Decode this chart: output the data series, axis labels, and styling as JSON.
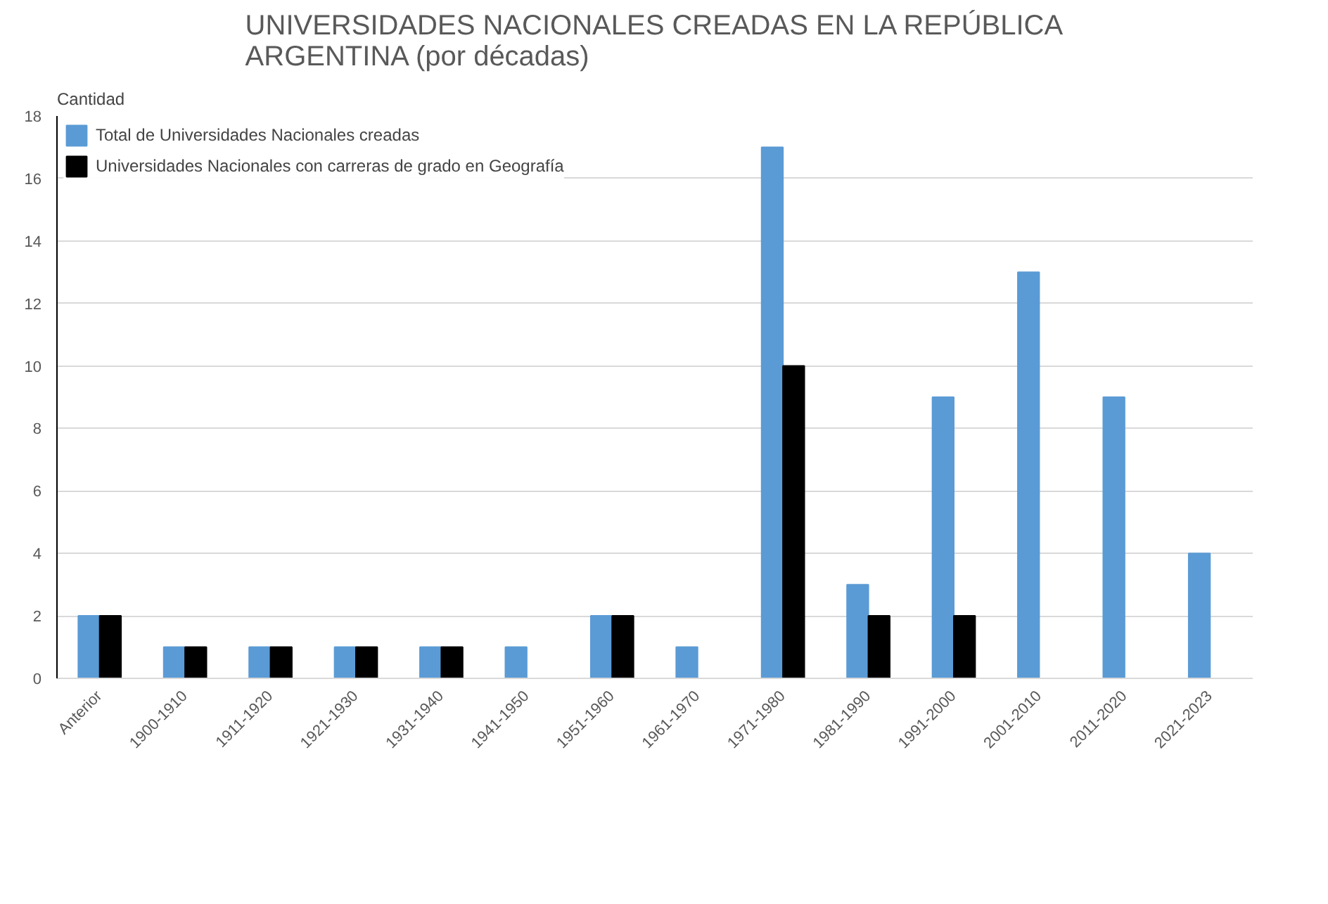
{
  "chart_data": {
    "type": "bar",
    "title": "UNIVERSIDADES NACIONALES CREADAS EN LA REPÚBLICA ARGENTINA (por décadas)",
    "ylabel": "Cantidad",
    "categories": [
      "Anterior",
      "1900-1910",
      "1911-1920",
      "1921-1930",
      "1931-1940",
      "1941-1950",
      "1951-1960",
      "1961-1970",
      "1971-1980",
      "1981-1990",
      "1991-2000",
      "2001-2010",
      "2011-2020",
      "2021-2023"
    ],
    "series": [
      {
        "name": "Total de Universidades Nacionales creadas",
        "color": "#5b9bd5",
        "values": [
          2,
          1,
          1,
          1,
          1,
          1,
          2,
          1,
          17,
          3,
          9,
          13,
          9,
          4
        ]
      },
      {
        "name": "Universidades Nacionales con carreras de grado en Geografía",
        "color": "#000000",
        "values": [
          2,
          1,
          1,
          1,
          1,
          null,
          2,
          null,
          10,
          2,
          2,
          null,
          null,
          null
        ]
      }
    ],
    "ylim": [
      0,
      18
    ],
    "yticks": [
      0,
      2,
      4,
      6,
      8,
      10,
      12,
      14,
      16,
      18
    ],
    "grid": "y",
    "legend": "top left"
  }
}
